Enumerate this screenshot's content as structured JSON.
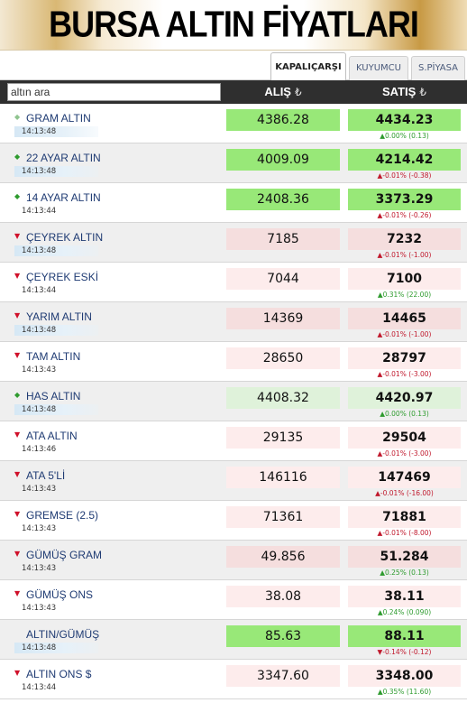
{
  "banner": {
    "title": "BURSA ALTIN FİYATLARI"
  },
  "tabs": [
    {
      "label": "KAPALIÇARŞI",
      "active": true
    },
    {
      "label": "KUYUMCU",
      "active": false
    },
    {
      "label": "S.PİYASA",
      "active": false
    }
  ],
  "search": {
    "value": "altın ara",
    "placeholder": "altın ara"
  },
  "columns": {
    "buy": "ALIŞ",
    "sell": "SATIŞ",
    "currency_symbol": "₺"
  },
  "colors": {
    "green_strong": "#98e878",
    "green_light": "#dff2da",
    "pink": "#fdecec",
    "pink_strong": "#f5dede",
    "up": "#2e9b2e",
    "down": "#c0182c"
  },
  "rows": [
    {
      "name": "GRAM ALTIN",
      "time": "14:13:48",
      "buy": "4386.28",
      "sell": "4434.23",
      "change": "▲0.00% (0.13)",
      "trend": "flat",
      "bg": "green_strong",
      "time_hl": true
    },
    {
      "name": "22 AYAR ALTIN",
      "time": "14:13:48",
      "buy": "4009.09",
      "sell": "4214.42",
      "change": "▲-0.01% (-0.38)",
      "trend": "up",
      "bg": "green_strong",
      "time_hl": true
    },
    {
      "name": "14 AYAR ALTIN",
      "time": "14:13:44",
      "buy": "2408.36",
      "sell": "3373.29",
      "change": "▲-0.01% (-0.26)",
      "trend": "up",
      "bg": "green_strong",
      "time_hl": false
    },
    {
      "name": "ÇEYREK ALTIN",
      "time": "14:13:48",
      "buy": "7185",
      "sell": "7232",
      "change": "▲-0.01% (-1.00)",
      "trend": "down",
      "bg": "pink_strong",
      "time_hl": true
    },
    {
      "name": "ÇEYREK ESKİ",
      "time": "14:13:44",
      "buy": "7044",
      "sell": "7100",
      "change": "▲0.31% (22.00)",
      "trend": "down",
      "bg": "pink",
      "time_hl": false
    },
    {
      "name": "YARIM ALTIN",
      "time": "14:13:48",
      "buy": "14369",
      "sell": "14465",
      "change": "▲-0.01% (-1.00)",
      "trend": "down",
      "bg": "pink_strong",
      "time_hl": true
    },
    {
      "name": "TAM ALTIN",
      "time": "14:13:43",
      "buy": "28650",
      "sell": "28797",
      "change": "▲-0.01% (-3.00)",
      "trend": "down",
      "bg": "pink",
      "time_hl": false
    },
    {
      "name": "HAS ALTIN",
      "time": "14:13:48",
      "buy": "4408.32",
      "sell": "4420.97",
      "change": "▲0.00% (0.13)",
      "trend": "up",
      "bg": "green_light",
      "time_hl": true
    },
    {
      "name": "ATA ALTIN",
      "time": "14:13:46",
      "buy": "29135",
      "sell": "29504",
      "change": "▲-0.01% (-3.00)",
      "trend": "down",
      "bg": "pink",
      "time_hl": false
    },
    {
      "name": "ATA 5'Lİ",
      "time": "14:13:43",
      "buy": "146116",
      "sell": "147469",
      "change": "▲-0.01% (-16.00)",
      "trend": "down",
      "bg": "pink",
      "time_hl": false
    },
    {
      "name": "GREMSE (2.5)",
      "time": "14:13:43",
      "buy": "71361",
      "sell": "71881",
      "change": "▲-0.01% (-8.00)",
      "trend": "down",
      "bg": "pink",
      "time_hl": false
    },
    {
      "name": "GÜMÜŞ GRAM",
      "time": "14:13:43",
      "buy": "49.856",
      "sell": "51.284",
      "change": "▲0.25% (0.13)",
      "trend": "down",
      "bg": "pink_strong",
      "time_hl": false
    },
    {
      "name": "GÜMÜŞ ONS",
      "time": "14:13:43",
      "buy": "38.08",
      "sell": "38.11",
      "change": "▲0.24% (0.090)",
      "trend": "down",
      "bg": "pink",
      "time_hl": false
    },
    {
      "name": "ALTIN/GÜMÜŞ",
      "time": "14:13:48",
      "buy": "85.63",
      "sell": "88.11",
      "change": "▼-0.14% (-0.12)",
      "trend": "none",
      "bg": "green_strong",
      "time_hl": true
    },
    {
      "name": "ALTIN ONS $",
      "time": "14:13:44",
      "buy": "3347.60",
      "sell": "3348.00",
      "change": "▲0.35% (11.60)",
      "trend": "down",
      "bg": "pink",
      "time_hl": false
    }
  ]
}
